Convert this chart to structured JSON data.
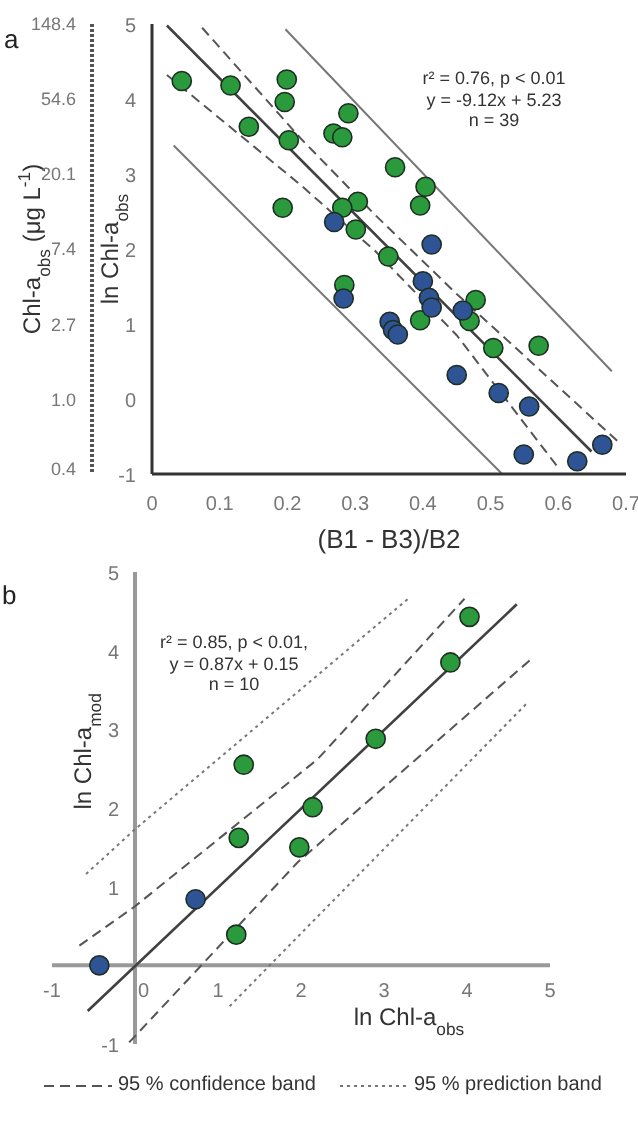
{
  "chart_data": [
    {
      "type": "scatter",
      "title": "a",
      "xlabel": "(B1 - B3)/B2",
      "ylabel": "ln Chl-a$_{obs}$",
      "y2label": "Chl-a$_{obs}$ (μg L$^{-1}$)",
      "annotations": [
        "r² = 0.76, p < 0.01",
        "y = -9.12x + 5.23",
        "n = 39"
      ],
      "xlim": [
        0,
        0.7
      ],
      "xticks": [
        0,
        0.1,
        0.2,
        0.3,
        0.4,
        0.5,
        0.6,
        0.7
      ],
      "ylim": [
        -1,
        5
      ],
      "yticks": [
        -1,
        0,
        1,
        2,
        3,
        4,
        5
      ],
      "log": "y2",
      "y2lim": [
        0.37,
        148.4
      ],
      "y2ticks": [
        0.4,
        {
          "value": 1,
          "label": "1.0"
        },
        2.7,
        7.4,
        20.1,
        54.6,
        148.4
      ],
      "series": [
        {
          "marker": "circle",
          "color": "#2a9a3c",
          "x": [
            0.044,
            0.116,
            0.199,
            0.196,
            0.143,
            0.202,
            0.193,
            0.29,
            0.268,
            0.281,
            0.359,
            0.404,
            0.396,
            0.304,
            0.281,
            0.301,
            0.349,
            0.284,
            0.478,
            0.469,
            0.396,
            0.504,
            0.571
          ],
          "values": [
            4.24,
            4.18,
            4.26,
            3.96,
            3.63,
            3.45,
            2.55,
            3.81,
            3.54,
            3.49,
            3.09,
            2.83,
            2.58,
            2.63,
            2.55,
            2.26,
            1.9,
            1.52,
            1.32,
            1.04,
            1.05,
            0.68,
            0.71
          ]
        },
        {
          "marker": "circle",
          "color": "#2f5496",
          "x": [
            0.269,
            0.413,
            0.4,
            0.409,
            0.413,
            0.459,
            0.283,
            0.351,
            0.356,
            0.363,
            0.45,
            0.512,
            0.557,
            0.549,
            0.628,
            0.665
          ],
          "values": [
            2.36,
            2.06,
            1.57,
            1.35,
            1.22,
            1.18,
            1.34,
            1.03,
            0.92,
            0.86,
            0.32,
            0.08,
            -0.1,
            -0.74,
            -0.83,
            -0.61
          ]
        },
        {
          "type": "line",
          "color": "#404040",
          "line_style": "solid",
          "x": [
            0.022,
            0.649
          ],
          "values": [
            4.98,
            -0.7
          ]
        },
        {
          "type": "line",
          "color": "#555555",
          "line_style": "dashed",
          "x": [
            0.074,
            0.22,
            0.33,
            0.45,
            0.691
          ],
          "values": [
            4.95,
            3.47,
            2.45,
            1.4,
            -0.59
          ]
        },
        {
          "type": "line",
          "color": "#555555",
          "line_style": "dashed",
          "x": [
            0.022,
            0.22,
            0.33,
            0.45,
            0.602
          ],
          "values": [
            4.32,
            2.85,
            1.97,
            0.85,
            -0.94
          ]
        },
        {
          "type": "line",
          "color": "#777777",
          "line_style": "solid",
          "x": [
            0.197,
            0.679
          ],
          "values": [
            4.93,
            0.37
          ]
        },
        {
          "type": "line",
          "color": "#777777",
          "line_style": "solid",
          "x": [
            0.032,
            0.516
          ],
          "values": [
            3.38,
            -0.99
          ]
        }
      ]
    },
    {
      "type": "scatter",
      "title": "b",
      "xlabel": "ln Chl-a$_{obs}$",
      "ylabel": "ln Chl-a$_{mod}$",
      "annotations": [
        "r² = 0.85, p < 0.01,",
        "y = 0.87x + 0.15",
        "n = 10"
      ],
      "xlim": [
        -1,
        5
      ],
      "xticks": [
        -1,
        0,
        1,
        2,
        3,
        4,
        5
      ],
      "ylim": [
        -1,
        5
      ],
      "yticks": [
        -1,
        1,
        2,
        3,
        4,
        5
      ],
      "legend": "bottom",
      "series": [
        {
          "marker": "circle",
          "color": "#2a9a3c",
          "x": [
            1.22,
            1.25,
            1.31,
            1.98,
            2.14,
            2.9,
            3.8,
            4.03
          ],
          "values": [
            0.39,
            1.62,
            2.55,
            1.5,
            2.01,
            2.88,
            3.85,
            4.43
          ]
        },
        {
          "marker": "circle",
          "color": "#2f5496",
          "x": [
            -0.43,
            0.73
          ],
          "values": [
            0,
            0.84
          ]
        },
        {
          "type": "line",
          "color": "#404040",
          "line_style": "solid",
          "x": [
            -0.57,
            4.6
          ],
          "values": [
            -0.58,
            4.59
          ]
        },
        {
          "type": "line",
          "name": "95 % confidence band",
          "color": "#555555",
          "line_style": "dashed",
          "x": [
            -0.67,
            0,
            2.2,
            3.97
          ],
          "values": [
            0.25,
            0.75,
            2.62,
            4.66
          ]
        },
        {
          "type": "line",
          "color": "#555555",
          "line_style": "dashed",
          "x": [
            -0.07,
            1.96,
            4.76
          ],
          "values": [
            -0.98,
            1.31,
            3.88
          ]
        },
        {
          "type": "line",
          "name": "95 % prediction band",
          "color": "#777777",
          "line_style": "dotted",
          "x": [
            -0.59,
            0,
            3.29
          ],
          "values": [
            1.16,
            1.73,
            4.66
          ]
        },
        {
          "type": "line",
          "color": "#777777",
          "line_style": "dotted",
          "x": [
            1.14,
            4.73
          ],
          "values": [
            -0.52,
            3.34
          ]
        }
      ]
    }
  ]
}
